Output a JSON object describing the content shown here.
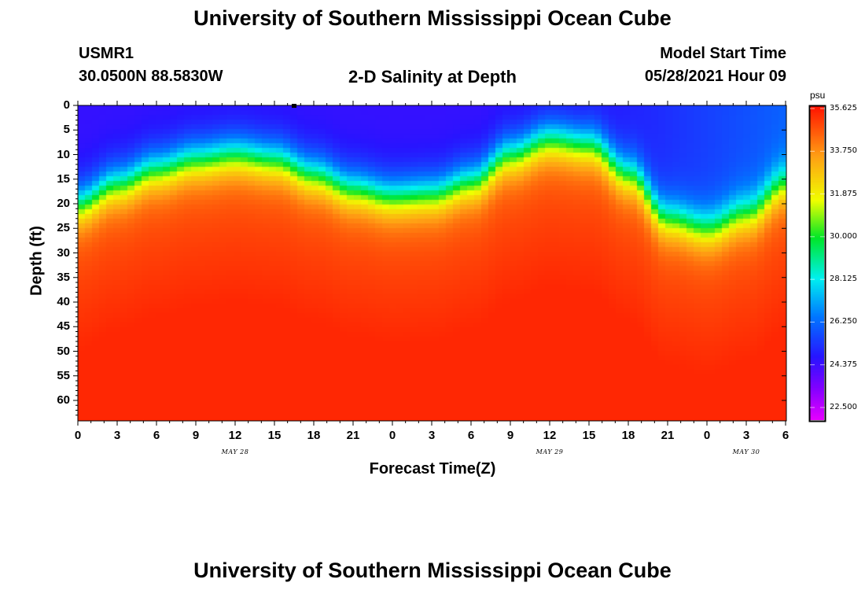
{
  "page": {
    "title_top": "University of Southern Mississippi Ocean Cube",
    "title_bottom": "University of Southern Mississippi Ocean Cube",
    "station": "USMR1",
    "coords": "30.0500N  88.5830W",
    "plot_title": "2-D Salinity at Depth",
    "model_start_label": "Model Start Time",
    "model_start_value": "05/28/2021 Hour 09"
  },
  "chart_data": {
    "type": "heatmap",
    "title": "2-D Salinity at Depth",
    "xlabel": "Forecast Time(Z)",
    "ylabel": "Depth (ft)",
    "x_tick_labels": [
      "0",
      "3",
      "6",
      "9",
      "12",
      "15",
      "18",
      "21",
      "0",
      "3",
      "6",
      "9",
      "12",
      "15",
      "18",
      "21",
      "0",
      "3",
      "6"
    ],
    "x_hours_range": [
      0,
      54
    ],
    "date_labels": [
      {
        "text": "MAY 28",
        "hour": 12
      },
      {
        "text": "MAY 29",
        "hour": 36
      },
      {
        "text": "MAY 30",
        "hour": 51
      }
    ],
    "y_tick_labels": [
      "0",
      "5",
      "10",
      "15",
      "20",
      "25",
      "30",
      "35",
      "40",
      "45",
      "50",
      "55",
      "60"
    ],
    "y_tick_values": [
      0,
      5,
      10,
      15,
      20,
      25,
      30,
      35,
      40,
      45,
      50,
      55,
      60
    ],
    "depth_range_ft": [
      0,
      64
    ],
    "colorbar": {
      "unit": "psu",
      "ticks": [
        "35.625",
        "33.750",
        "31.875",
        "30.000",
        "28.125",
        "26.250",
        "24.375",
        "22.500"
      ],
      "range": [
        21.9,
        35.9
      ]
    },
    "salinity_layers": {
      "surface_psu": 24.5,
      "deep_psu": 35.6,
      "halocline_depth_ft": [
        {
          "hour": 0,
          "depth": 20
        },
        {
          "hour": 3,
          "depth": 16
        },
        {
          "hour": 6,
          "depth": 13
        },
        {
          "hour": 9,
          "depth": 11
        },
        {
          "hour": 12,
          "depth": 10
        },
        {
          "hour": 15,
          "depth": 11
        },
        {
          "hour": 18,
          "depth": 14
        },
        {
          "hour": 21,
          "depth": 17
        },
        {
          "hour": 24,
          "depth": 18.5
        },
        {
          "hour": 27,
          "depth": 18
        },
        {
          "hour": 30,
          "depth": 15.5
        },
        {
          "hour": 33,
          "depth": 10
        },
        {
          "hour": 36,
          "depth": 7
        },
        {
          "hour": 39,
          "depth": 8
        },
        {
          "hour": 42,
          "depth": 14
        },
        {
          "hour": 45,
          "depth": 23
        },
        {
          "hour": 48,
          "depth": 25
        },
        {
          "hour": 51,
          "depth": 22
        },
        {
          "hour": 54,
          "depth": 16
        }
      ]
    }
  }
}
